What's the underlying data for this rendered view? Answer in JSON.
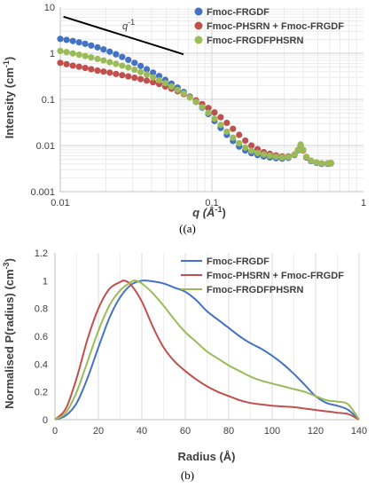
{
  "chart_data": [
    {
      "type": "scatter",
      "panel": "(a)",
      "xlabel": "q (Å⁻¹)",
      "ylabel": "Intensity (cm⁻¹)",
      "x_scale": "log",
      "y_scale": "log",
      "xlim": [
        0.01,
        1
      ],
      "ylim": [
        0.001,
        10
      ],
      "x_ticks": [
        "0.01",
        "0.1",
        "1"
      ],
      "y_ticks": [
        "0.001",
        "0.01",
        "0.1",
        "1",
        "10"
      ],
      "grid": true,
      "legend_position": "top-right",
      "annotation": "q⁻¹",
      "annotation_line": {
        "x": [
          0.0105,
          0.065
        ],
        "y": [
          6.2,
          0.95
        ]
      },
      "series": [
        {
          "name": "Fmoc-FRGDF",
          "color": "#4472C4",
          "x": [
            0.01,
            0.011,
            0.0121,
            0.0133,
            0.0146,
            0.016,
            0.0176,
            0.0193,
            0.0212,
            0.0233,
            0.0256,
            0.0281,
            0.0309,
            0.0339,
            0.0372,
            0.0409,
            0.0449,
            0.0493,
            0.0541,
            0.0594,
            0.0652,
            0.0716,
            0.0786,
            0.0863,
            0.0948,
            0.1041,
            0.1143,
            0.1255,
            0.1378,
            0.1513,
            0.1661,
            0.1823,
            0.2002,
            0.2198,
            0.2413,
            0.265,
            0.2909,
            0.3194,
            0.3507,
            0.37,
            0.385,
            0.4,
            0.42,
            0.45,
            0.49,
            0.53,
            0.58,
            0.61
          ],
          "y": [
            2.05,
            1.95,
            1.84,
            1.72,
            1.6,
            1.47,
            1.34,
            1.21,
            1.08,
            0.95,
            0.83,
            0.72,
            0.62,
            0.53,
            0.45,
            0.38,
            0.32,
            0.265,
            0.22,
            0.18,
            0.145,
            0.115,
            0.088,
            0.066,
            0.048,
            0.034,
            0.024,
            0.017,
            0.0125,
            0.0095,
            0.0078,
            0.0068,
            0.0062,
            0.0058,
            0.0055,
            0.0053,
            0.0052,
            0.0054,
            0.0062,
            0.0078,
            0.01,
            0.008,
            0.0055,
            0.0046,
            0.0042,
            0.004,
            0.004,
            0.0041
          ]
        },
        {
          "name": "Fmoc-PHSRN + Fmoc-FRGDF",
          "color": "#C0504D",
          "x": [
            0.01,
            0.011,
            0.0121,
            0.0133,
            0.0146,
            0.016,
            0.0176,
            0.0193,
            0.0212,
            0.0233,
            0.0256,
            0.0281,
            0.0309,
            0.0339,
            0.0372,
            0.0409,
            0.0449,
            0.0493,
            0.0541,
            0.0594,
            0.0652,
            0.0716,
            0.0786,
            0.0863,
            0.0948,
            0.1041,
            0.1143,
            0.1255,
            0.1378,
            0.1513,
            0.1661,
            0.1823,
            0.2002,
            0.2198,
            0.2413,
            0.265,
            0.2909,
            0.3194,
            0.3507,
            0.37,
            0.385,
            0.4,
            0.42,
            0.45,
            0.49,
            0.53,
            0.58,
            0.61
          ],
          "y": [
            0.62,
            0.58,
            0.54,
            0.51,
            0.48,
            0.45,
            0.42,
            0.4,
            0.38,
            0.355,
            0.335,
            0.315,
            0.295,
            0.275,
            0.255,
            0.235,
            0.215,
            0.19,
            0.17,
            0.15,
            0.13,
            0.112,
            0.095,
            0.079,
            0.065,
            0.052,
            0.041,
            0.031,
            0.023,
            0.017,
            0.0128,
            0.01,
            0.0083,
            0.0072,
            0.0066,
            0.0061,
            0.0058,
            0.0058,
            0.0064,
            0.008,
            0.01,
            0.0078,
            0.0056,
            0.0047,
            0.0043,
            0.0041,
            0.0041,
            0.0042
          ]
        },
        {
          "name": "Fmoc-FRGDFPHSRN",
          "color": "#9BBB59",
          "x": [
            0.01,
            0.011,
            0.0121,
            0.0133,
            0.0146,
            0.016,
            0.0176,
            0.0193,
            0.0212,
            0.0233,
            0.0256,
            0.0281,
            0.0309,
            0.0339,
            0.0372,
            0.0409,
            0.0449,
            0.0493,
            0.0541,
            0.0594,
            0.0652,
            0.0716,
            0.0786,
            0.0863,
            0.0948,
            0.1041,
            0.1143,
            0.1255,
            0.1378,
            0.1513,
            0.1661,
            0.1823,
            0.2002,
            0.2198,
            0.2413,
            0.265,
            0.2909,
            0.3194,
            0.3507,
            0.37,
            0.385,
            0.4,
            0.42,
            0.45,
            0.49,
            0.53,
            0.58,
            0.61
          ],
          "y": [
            1.12,
            1.06,
            0.99,
            0.93,
            0.87,
            0.81,
            0.75,
            0.7,
            0.64,
            0.59,
            0.54,
            0.49,
            0.44,
            0.39,
            0.345,
            0.3,
            0.26,
            0.225,
            0.19,
            0.16,
            0.135,
            0.11,
            0.088,
            0.068,
            0.051,
            0.038,
            0.028,
            0.02,
            0.0148,
            0.0112,
            0.009,
            0.0077,
            0.0069,
            0.0064,
            0.006,
            0.0057,
            0.0055,
            0.0056,
            0.0064,
            0.008,
            0.0105,
            0.008,
            0.0057,
            0.0047,
            0.0043,
            0.0041,
            0.0041,
            0.0042
          ]
        }
      ]
    },
    {
      "type": "line",
      "panel": "(b)",
      "xlabel": "Radius (Å)",
      "ylabel": "Normalised P(radius) (cm⁻³)",
      "xlim": [
        0,
        140
      ],
      "ylim": [
        0,
        1.2
      ],
      "x_ticks": [
        "0",
        "20",
        "40",
        "60",
        "80",
        "100",
        "120",
        "140"
      ],
      "y_ticks": [
        "0",
        "0.2",
        "0.4",
        "0.6",
        "0.8",
        "1",
        "1.2"
      ],
      "grid": true,
      "legend_position": "top-right",
      "series": [
        {
          "name": "Fmoc-FRGDF",
          "color": "#4472C4",
          "x": [
            0,
            5,
            10,
            15,
            20,
            25,
            30,
            35,
            40,
            45,
            50,
            55,
            60,
            65,
            70,
            75,
            80,
            85,
            90,
            95,
            100,
            105,
            110,
            115,
            120,
            125,
            130,
            135,
            140
          ],
          "y": [
            0,
            0.03,
            0.12,
            0.3,
            0.52,
            0.73,
            0.88,
            0.97,
            1.0,
            0.995,
            0.98,
            0.95,
            0.92,
            0.86,
            0.78,
            0.72,
            0.66,
            0.6,
            0.55,
            0.51,
            0.46,
            0.4,
            0.33,
            0.25,
            0.17,
            0.12,
            0.1,
            0.07,
            0.0
          ]
        },
        {
          "name": "Fmoc-PHSRN + Fmoc-FRGDF",
          "color": "#C0504D",
          "x": [
            0,
            5,
            10,
            15,
            20,
            25,
            30,
            32,
            35,
            40,
            45,
            50,
            55,
            60,
            65,
            70,
            75,
            80,
            85,
            90,
            95,
            100,
            105,
            110,
            115,
            120,
            125,
            130,
            135,
            140
          ],
          "y": [
            0,
            0.08,
            0.3,
            0.58,
            0.8,
            0.94,
            0.99,
            1.0,
            0.97,
            0.85,
            0.67,
            0.52,
            0.42,
            0.35,
            0.29,
            0.24,
            0.2,
            0.17,
            0.14,
            0.12,
            0.11,
            0.1,
            0.095,
            0.09,
            0.08,
            0.07,
            0.06,
            0.05,
            0.04,
            0.0
          ]
        },
        {
          "name": "Fmoc-FRGDFPHSRN",
          "color": "#9BBB59",
          "x": [
            0,
            5,
            10,
            15,
            20,
            25,
            30,
            35,
            37,
            40,
            45,
            50,
            55,
            60,
            65,
            70,
            75,
            80,
            85,
            90,
            95,
            100,
            105,
            110,
            115,
            120,
            125,
            130,
            135,
            140
          ],
          "y": [
            0,
            0.05,
            0.2,
            0.42,
            0.64,
            0.82,
            0.93,
            0.99,
            1.0,
            0.98,
            0.91,
            0.82,
            0.72,
            0.63,
            0.56,
            0.49,
            0.44,
            0.39,
            0.35,
            0.31,
            0.28,
            0.26,
            0.24,
            0.22,
            0.2,
            0.17,
            0.14,
            0.13,
            0.11,
            0.0
          ]
        }
      ]
    }
  ],
  "panel_labels": {
    "a": "(a)",
    "b": "(b)"
  }
}
